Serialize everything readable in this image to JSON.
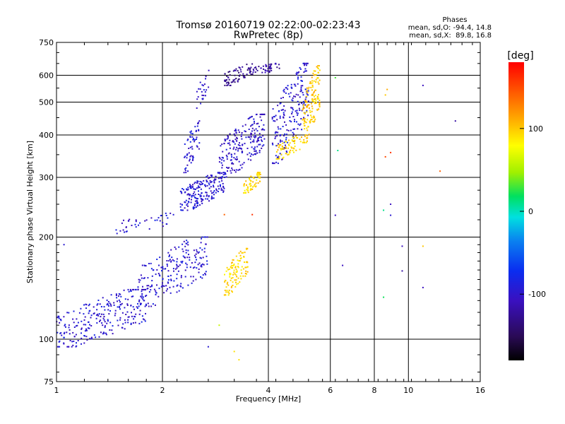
{
  "chart_data": {
    "type": "scatter",
    "title": "Tromsø 20160719 02:22:00-02:23:43",
    "subtitle": "RwPretec (8p)",
    "xlabel": "Frequency [MHz]",
    "ylabel": "Stationary phase Virtual Height [km]",
    "x_scale": "log",
    "y_scale": "log",
    "xlim": [
      1,
      16
    ],
    "ylim": [
      75,
      750
    ],
    "x_ticks": [
      "1",
      "2",
      "4",
      "6",
      "8",
      "10",
      "16"
    ],
    "y_ticks": [
      "75",
      "100",
      "200",
      "300",
      "400",
      "500",
      "600",
      "750"
    ],
    "grid": true,
    "phase_box": {
      "heading": "Phases",
      "line1": "mean, sd,O: -94.4, 14.8",
      "line2": "mean, sd,X:  89.8, 16.8"
    },
    "colorbar": {
      "label": "[deg]",
      "range": [
        -180,
        180
      ],
      "ticks": [
        "100",
        "0",
        "-100"
      ]
    },
    "clusters": [
      {
        "x": [
          1.0,
          1.8
        ],
        "y": [
          95,
          140
        ],
        "n": 260,
        "phase": -100
      },
      {
        "x": [
          1.7,
          2.7
        ],
        "y": [
          125,
          200
        ],
        "n": 220,
        "phase": -100
      },
      {
        "x": [
          1.45,
          2.15
        ],
        "y": [
          205,
          235
        ],
        "n": 40,
        "phase": -100
      },
      {
        "x": [
          2.25,
          3.0
        ],
        "y": [
          240,
          310
        ],
        "n": 200,
        "phase": -100
      },
      {
        "x": [
          2.3,
          2.55
        ],
        "y": [
          310,
          440
        ],
        "n": 60,
        "phase": -100
      },
      {
        "x": [
          2.9,
          3.9
        ],
        "y": [
          300,
          460
        ],
        "n": 220,
        "phase": -105
      },
      {
        "x": [
          3.0,
          3.6
        ],
        "y": [
          560,
          650
        ],
        "n": 70,
        "phase": -130
      },
      {
        "x": [
          3.5,
          4.3
        ],
        "y": [
          600,
          650
        ],
        "n": 50,
        "phase": -120
      },
      {
        "x": [
          4.1,
          5.2
        ],
        "y": [
          330,
          650
        ],
        "n": 200,
        "phase": -100
      },
      {
        "x": [
          2.5,
          2.75
        ],
        "y": [
          480,
          620
        ],
        "n": 25,
        "phase": -100
      },
      {
        "x": [
          3.0,
          3.5
        ],
        "y": [
          135,
          185
        ],
        "n": 110,
        "phase": 95
      },
      {
        "x": [
          3.4,
          3.8
        ],
        "y": [
          270,
          310
        ],
        "n": 60,
        "phase": 95
      },
      {
        "x": [
          4.2,
          5.0
        ],
        "y": [
          340,
          400
        ],
        "n": 60,
        "phase": 95
      },
      {
        "x": [
          5.0,
          5.6
        ],
        "y": [
          380,
          640
        ],
        "n": 150,
        "phase": 100
      }
    ],
    "outliers": [
      {
        "x": 6.2,
        "y": 590,
        "phase": 30
      },
      {
        "x": 6.3,
        "y": 360,
        "phase": 10
      },
      {
        "x": 6.2,
        "y": 232,
        "phase": -110
      },
      {
        "x": 6.5,
        "y": 165,
        "phase": -110
      },
      {
        "x": 8.6,
        "y": 525,
        "phase": 100
      },
      {
        "x": 8.7,
        "y": 545,
        "phase": 110
      },
      {
        "x": 8.6,
        "y": 345,
        "phase": 150
      },
      {
        "x": 8.9,
        "y": 355,
        "phase": 160
      },
      {
        "x": 8.5,
        "y": 240,
        "phase": 10
      },
      {
        "x": 8.9,
        "y": 250,
        "phase": -110
      },
      {
        "x": 8.9,
        "y": 232,
        "phase": -100
      },
      {
        "x": 9.6,
        "y": 188,
        "phase": -110
      },
      {
        "x": 9.6,
        "y": 159,
        "phase": -120
      },
      {
        "x": 8.5,
        "y": 133,
        "phase": 20
      },
      {
        "x": 11.0,
        "y": 560,
        "phase": -110
      },
      {
        "x": 11.0,
        "y": 188,
        "phase": 100
      },
      {
        "x": 11.0,
        "y": 142,
        "phase": -110
      },
      {
        "x": 12.3,
        "y": 313,
        "phase": 140
      },
      {
        "x": 13.6,
        "y": 440,
        "phase": -120
      },
      {
        "x": 1.05,
        "y": 190,
        "phase": -100
      },
      {
        "x": 2.7,
        "y": 95,
        "phase": -100
      },
      {
        "x": 2.9,
        "y": 110,
        "phase": 60
      },
      {
        "x": 3.0,
        "y": 233,
        "phase": 140
      },
      {
        "x": 3.2,
        "y": 92,
        "phase": 90
      },
      {
        "x": 3.3,
        "y": 87,
        "phase": 90
      },
      {
        "x": 3.6,
        "y": 233,
        "phase": 160
      }
    ]
  }
}
